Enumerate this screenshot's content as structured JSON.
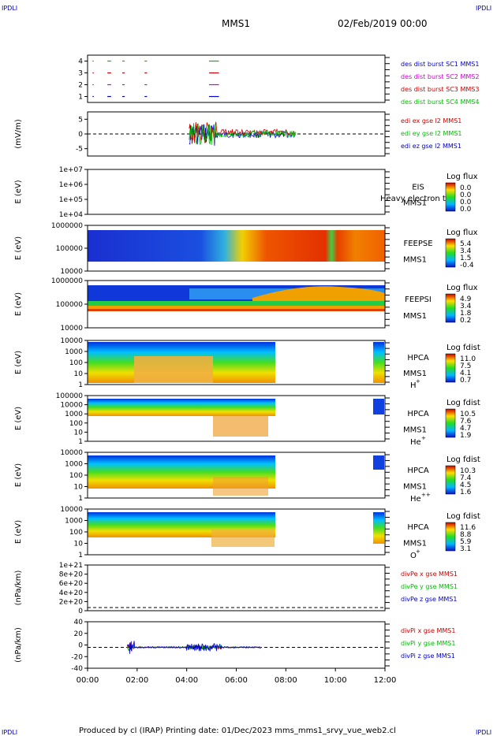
{
  "corner_tags": {
    "tl": "IPDLI",
    "tr": "IPDLI",
    "bl": "IPDLI",
    "br": "IPDLI"
  },
  "header": {
    "mission": "MMS1",
    "date": "02/Feb/2019 00:00"
  },
  "footer": {
    "text": "Produced by cl (IRAP)    Printing date: 01/Dec/2023    mms_mms1_srvy_vue_web2.cl"
  },
  "x_axis": {
    "ticks": [
      "00:00",
      "02:00",
      "04:00",
      "06:00",
      "08:00",
      "10:00",
      "12:00"
    ],
    "range_hours": [
      0,
      12
    ]
  },
  "panels": [
    {
      "id": "burst",
      "ylabel": "",
      "ticks": [
        "4",
        "3",
        "2",
        "1"
      ],
      "legend": [
        {
          "text": "des dist burst SC1 MMS1",
          "color": "#0000cc"
        },
        {
          "text": "des dist burst SC2 MMS2",
          "color": "#cc00cc"
        },
        {
          "text": "des dist burst SC3 MMS3",
          "color": "#cc0000"
        },
        {
          "text": "des dist burst SC4 MMS4",
          "color": "#00bb00"
        }
      ]
    },
    {
      "id": "edi",
      "ylabel": "(mV/m)",
      "ticks": [
        "5",
        "0",
        "-5"
      ],
      "legend": [
        {
          "text": "edi ex gse l2 MMS1",
          "color": "#cc0000"
        },
        {
          "text": "edi ey gse l2 MMS1",
          "color": "#00bb00"
        },
        {
          "text": "edi ez gse l2 MMS1",
          "color": "#0000cc"
        }
      ]
    },
    {
      "id": "eis",
      "ylabel": "E (eV)",
      "ticks": [
        "1e+07",
        "1e+06",
        "1e+05",
        "1e+04"
      ],
      "labels": [
        "EIS",
        "MMS1"
      ],
      "overlay": "Heavy electron to",
      "colorbar": {
        "title": "Log flux",
        "ticks": [
          "0.0",
          "0.0",
          "0.0",
          "0.0"
        ]
      }
    },
    {
      "id": "feeps_e",
      "ylabel": "E (eV)",
      "ticks": [
        "1000000",
        "100000",
        "10000"
      ],
      "labels": [
        "FEEPSE",
        "MMS1"
      ],
      "colorbar": {
        "title": "Log flux",
        "ticks": [
          "5.4",
          "3.4",
          "1.5",
          "-0.4"
        ]
      }
    },
    {
      "id": "feeps_i",
      "ylabel": "E (eV)",
      "ticks": [
        "1000000",
        "100000",
        "10000"
      ],
      "labels": [
        "FEEPSI",
        "MMS1"
      ],
      "colorbar": {
        "title": "Log flux",
        "ticks": [
          "4.9",
          "3.4",
          "1.8",
          "0.2"
        ]
      }
    },
    {
      "id": "hpca_h",
      "ylabel": "E (eV)",
      "ticks": [
        "10000",
        "1000",
        "100",
        "10",
        "1"
      ],
      "labels": [
        "HPCA",
        "MMS1"
      ],
      "species": "H",
      "species_sup": "+",
      "colorbar": {
        "title": "Log fdist",
        "ticks": [
          "11.0",
          "7.5",
          "4.1",
          "0.7"
        ]
      }
    },
    {
      "id": "hpca_he",
      "ylabel": "E (eV)",
      "ticks": [
        "100000",
        "10000",
        "1000",
        "100",
        "10",
        "1"
      ],
      "labels": [
        "HPCA",
        "MMS1"
      ],
      "species": "He",
      "species_sup": "+",
      "colorbar": {
        "title": "Log fdist",
        "ticks": [
          "10.5",
          "7.6",
          "4.7",
          "1.9"
        ]
      }
    },
    {
      "id": "hpca_hepp",
      "ylabel": "E (eV)",
      "ticks": [
        "10000",
        "1000",
        "100",
        "10",
        "1"
      ],
      "labels": [
        "HPCA",
        "MMS1"
      ],
      "species": "He",
      "species_sup": "++",
      "colorbar": {
        "title": "Log fdist",
        "ticks": [
          "10.3",
          "7.4",
          "4.5",
          "1.6"
        ]
      }
    },
    {
      "id": "hpca_o",
      "ylabel": "E (eV)",
      "ticks": [
        "10000",
        "1000",
        "100",
        "10",
        "1"
      ],
      "labels": [
        "HPCA",
        "MMS1"
      ],
      "species": "O",
      "species_sup": "+",
      "colorbar": {
        "title": "Log fdist",
        "ticks": [
          "11.6",
          "8.8",
          "5.9",
          "3.1"
        ]
      }
    },
    {
      "id": "divpe",
      "ylabel": "(nPa/km)",
      "ticks": [
        "1e+21",
        "8e+20",
        "6e+20",
        "4e+20",
        "2e+20",
        "0"
      ],
      "legend": [
        {
          "text": "divPe x gse MMS1",
          "color": "#cc0000"
        },
        {
          "text": "divPe y gse MMS1",
          "color": "#00bb00"
        },
        {
          "text": "divPe z gse MMS1",
          "color": "#0000cc"
        }
      ]
    },
    {
      "id": "divpi",
      "ylabel": "(nPa/km)",
      "ticks": [
        "40",
        "20",
        "0",
        "-20",
        "-40"
      ],
      "legend": [
        {
          "text": "divPi x gse MMS1",
          "color": "#cc0000"
        },
        {
          "text": "divPi y gse MMS1",
          "color": "#00bb00"
        },
        {
          "text": "divPi z gse MMS1",
          "color": "#0000cc"
        }
      ]
    }
  ],
  "chart_data": {
    "type": "line",
    "title": "MMS1",
    "subtitle": "02/Feb/2019 00:00",
    "x": {
      "label": "",
      "ticks": [
        "00:00",
        "02:00",
        "04:00",
        "06:00",
        "08:00",
        "10:00",
        "12:00"
      ]
    },
    "series": [
      {
        "name": "des dist burst SC1 MMS1",
        "y": 1,
        "intervals_h": [
          [
            0.2,
            0.25
          ],
          [
            0.8,
            0.95
          ],
          [
            1.4,
            1.5
          ],
          [
            2.3,
            2.4
          ],
          [
            4.9,
            5.3
          ]
        ]
      },
      {
        "name": "des dist burst SC2 MMS2",
        "y": 2,
        "intervals_h": [
          [
            0.2,
            0.25
          ],
          [
            0.8,
            0.95
          ],
          [
            1.4,
            1.5
          ],
          [
            2.3,
            2.4
          ],
          [
            4.9,
            5.3
          ]
        ]
      },
      {
        "name": "des dist burst SC3 MMS3",
        "y": 3,
        "intervals_h": [
          [
            0.2,
            0.25
          ],
          [
            0.8,
            0.95
          ],
          [
            1.4,
            1.5
          ],
          [
            2.3,
            2.4
          ],
          [
            4.9,
            5.3
          ]
        ]
      },
      {
        "name": "des dist burst SC4 MMS4",
        "y": 4,
        "intervals_h": [
          [
            0.2,
            0.25
          ],
          [
            0.8,
            0.95
          ],
          [
            1.4,
            1.5
          ],
          [
            2.3,
            2.4
          ],
          [
            4.9,
            5.3
          ]
        ]
      },
      {
        "name": "edi ex gse l2 MMS1",
        "ylim": [
          -7,
          7
        ],
        "active_h": [
          4.1,
          8.4
        ]
      },
      {
        "name": "edi ey gse l2 MMS1",
        "ylim": [
          -7,
          7
        ],
        "active_h": [
          4.1,
          8.4
        ]
      },
      {
        "name": "edi ez gse l2 MMS1",
        "ylim": [
          -7,
          7
        ],
        "active_h": [
          4.1,
          8.4
        ]
      },
      {
        "name": "divPi z gse MMS1",
        "ylim": [
          -50,
          50
        ],
        "active_h": [
          1.6,
          7.0
        ]
      }
    ]
  }
}
